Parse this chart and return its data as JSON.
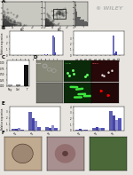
{
  "bg_color": "#e8e5e0",
  "wiley_text": "© WILEY",
  "wiley_color": "#b0b0b0",
  "flow_bg": "#c8c8c0",
  "scatter_color": "#404040",
  "bar_colors_B_left": [
    "#8080c0",
    "#5555aa",
    "#7070bb"
  ],
  "bar_colors_B_right": [
    "#8080c0",
    "#5555aa",
    "#7070bb"
  ],
  "bar_black": "#111111",
  "mic_colors_top": [
    "#909080",
    "#1a3a1a",
    "#3a1010"
  ],
  "mic_colors_bot": [
    "#808070",
    "#0a5a0a",
    "#280808"
  ],
  "green_bright": "#55ee55",
  "red_bright": "#ee3333",
  "white": "#ffffff",
  "panel_label_size": 4,
  "panel_label_color": "#000000",
  "bar_colors_E": [
    "#6060b0",
    "#4444aa",
    "#8888cc",
    "#5555bb"
  ],
  "f_colors": [
    "#c0a890",
    "#b09090",
    "#607850"
  ]
}
